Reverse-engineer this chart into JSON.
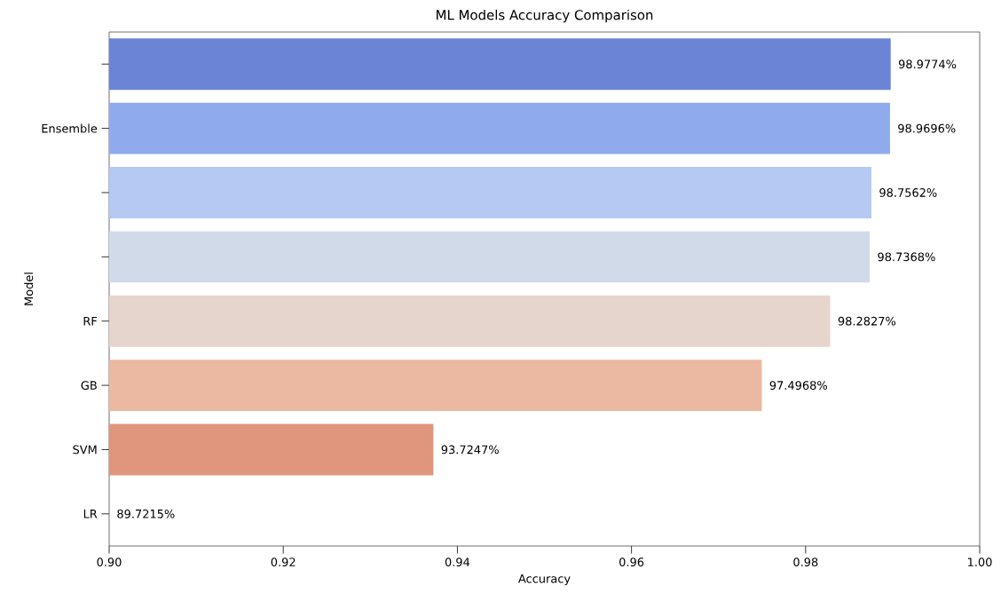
{
  "chart_data": {
    "type": "bar",
    "orientation": "horizontal",
    "title": "ML Models Accuracy Comparison",
    "xlabel": "Accuracy",
    "ylabel": "Model",
    "categories": [
      null,
      "Ensemble",
      null,
      null,
      "RF",
      "GB",
      "SVM",
      "LR"
    ],
    "values": [
      0.989774,
      0.989696,
      0.987562,
      0.987368,
      0.982827,
      0.974968,
      0.937247,
      null
    ],
    "value_labels": [
      "98.9774%",
      "98.9696%",
      "98.7562%",
      "98.7368%",
      "98.2827%",
      "97.4968%",
      "93.7247%",
      "89.7215%"
    ],
    "colors": [
      "#6b84d6",
      "#8fabee",
      "#b5c9f2",
      "#d1dae9",
      "#e6d5cd",
      "#ebb9a1",
      "#e0957d",
      "#c65a48"
    ],
    "xlim": [
      0.9,
      1.0
    ],
    "xticks": [
      {
        "value": 0.9,
        "label": "0.90"
      },
      {
        "value": 0.92,
        "label": "0.92"
      },
      {
        "value": 0.94,
        "label": "0.94"
      },
      {
        "value": 0.96,
        "label": "0.96"
      },
      {
        "value": 0.98,
        "label": "0.98"
      },
      {
        "value": 1.0,
        "label": "1.00"
      }
    ],
    "grid": false
  }
}
